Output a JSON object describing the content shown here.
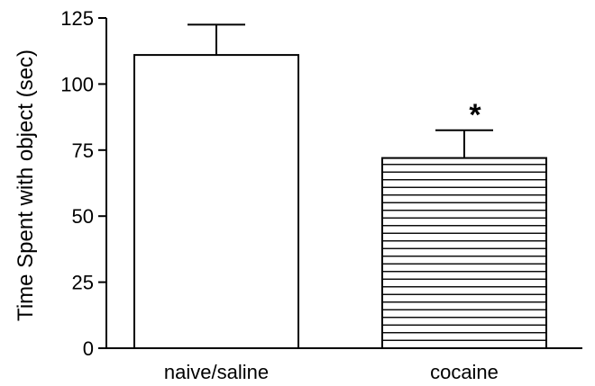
{
  "chart_data": {
    "type": "bar",
    "title": "",
    "xlabel": "",
    "ylabel": "Time Spent with object (sec)",
    "ylim": [
      0,
      125
    ],
    "yticks": [
      0,
      25,
      50,
      75,
      100,
      125
    ],
    "categories": [
      "naive/saline",
      "cocaine"
    ],
    "values": [
      111,
      72
    ],
    "errors": [
      11.5,
      10.5
    ],
    "fills": [
      "plain",
      "horizontal-hatch"
    ],
    "annotations": [
      "",
      "*"
    ],
    "grid": false,
    "legend": "none"
  }
}
